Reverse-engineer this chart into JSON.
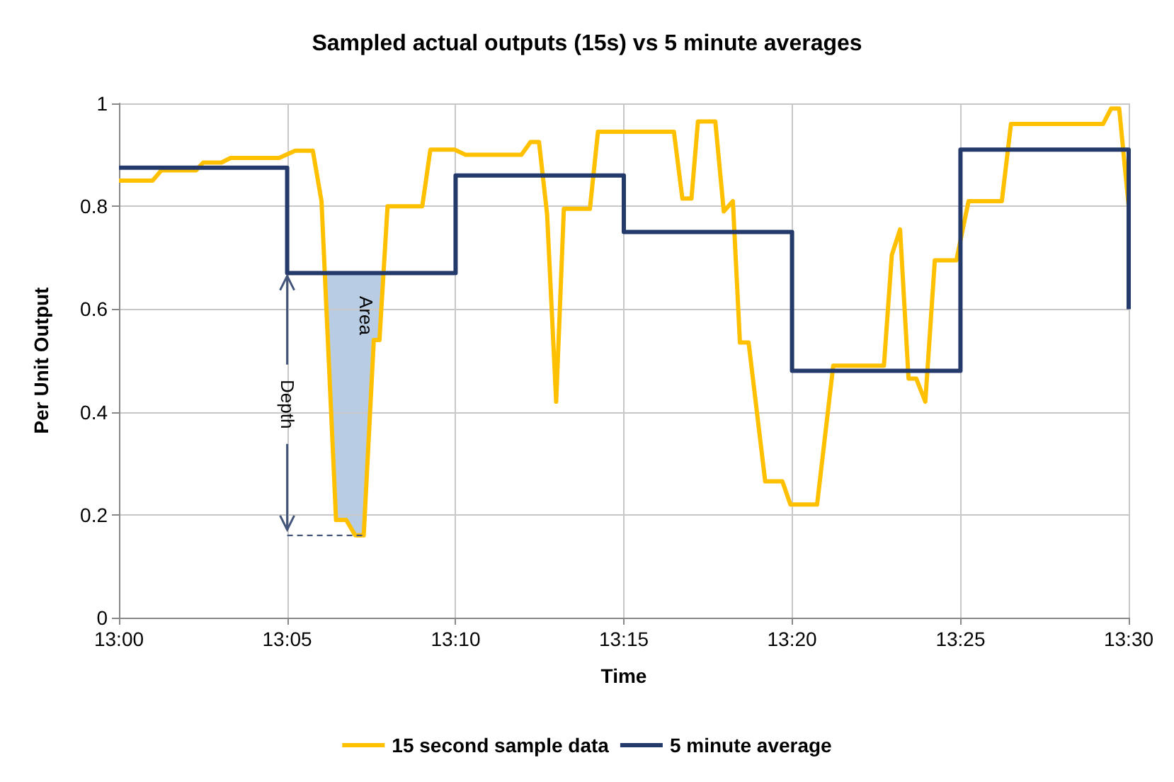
{
  "chart_data": {
    "type": "line",
    "title": "Sampled actual outputs (15s) vs 5 minute averages",
    "xlabel": "Time",
    "ylabel": "Per Unit Output",
    "xlim": [
      13,
      13.5
    ],
    "xticks": [
      {
        "value": 13,
        "label": "13:00"
      },
      {
        "value": 13.0833,
        "label": "13:05"
      },
      {
        "value": 13.1667,
        "label": "13:10"
      },
      {
        "value": 13.25,
        "label": "13:15"
      },
      {
        "value": 13.3333,
        "label": "13:20"
      },
      {
        "value": 13.4167,
        "label": "13:25"
      },
      {
        "value": 13.5,
        "label": "13:30"
      }
    ],
    "ylim": [
      0,
      1
    ],
    "yticks": [
      0,
      0.2,
      0.4,
      0.6,
      0.8,
      1
    ],
    "grid": true,
    "legend": "bottom",
    "marker": "none",
    "line_style": "solid",
    "annotations": [
      "Area",
      {
        "text": "Depth",
        "x": 13.0833,
        "y": 0.67
      }
    ],
    "series": [
      {
        "name": "15 second sample data",
        "color": "#ffc000",
        "x": [
          13,
          13.0167,
          13.021,
          13.0382,
          13.0417,
          13.0507,
          13.0553,
          13.0793,
          13.0873,
          13.096,
          13.1003,
          13.1075,
          13.1125,
          13.117,
          13.1212,
          13.1262,
          13.129,
          13.133,
          13.1502,
          13.1542,
          13.1662,
          13.1717,
          13.1993,
          13.2038,
          13.208,
          13.212,
          13.2165,
          13.2203,
          13.2332,
          13.2372,
          13.2748,
          13.279,
          13.2835,
          13.2867,
          13.2953,
          13.2995,
          13.304,
          13.3075,
          13.3118,
          13.32,
          13.3285,
          13.3325,
          13.3457,
          13.3537,
          13.3788,
          13.3827,
          13.3868,
          13.391,
          13.3948,
          13.3993,
          13.404,
          13.4147,
          13.4207,
          13.4372,
          13.4417,
          13.4873,
          13.4913,
          13.4953,
          13.5
        ],
        "values": [
          0.85,
          0.85,
          0.87,
          0.87,
          0.885,
          0.885,
          0.894,
          0.894,
          0.908,
          0.908,
          0.81,
          0.19,
          0.19,
          0.16,
          0.16,
          0.54,
          0.54,
          0.8,
          0.8,
          0.91,
          0.91,
          0.9,
          0.9,
          0.925,
          0.925,
          0.785,
          0.42,
          0.795,
          0.795,
          0.945,
          0.945,
          0.815,
          0.815,
          0.965,
          0.965,
          0.79,
          0.81,
          0.535,
          0.535,
          0.265,
          0.265,
          0.22,
          0.22,
          0.49,
          0.49,
          0.705,
          0.755,
          0.465,
          0.465,
          0.42,
          0.695,
          0.695,
          0.81,
          0.81,
          0.96,
          0.96,
          0.99,
          0.99,
          0.8
        ]
      },
      {
        "name": "5 minute average",
        "color": "#243a6b",
        "x": [
          13,
          13.0833,
          13.0833,
          13.1667,
          13.1667,
          13.25,
          13.25,
          13.3333,
          13.3333,
          13.4167,
          13.4167,
          13.5,
          13.5
        ],
        "values": [
          0.875,
          0.875,
          0.67,
          0.67,
          0.86,
          0.86,
          0.75,
          0.75,
          0.48,
          0.48,
          0.91,
          0.91,
          0.6
        ]
      }
    ]
  }
}
